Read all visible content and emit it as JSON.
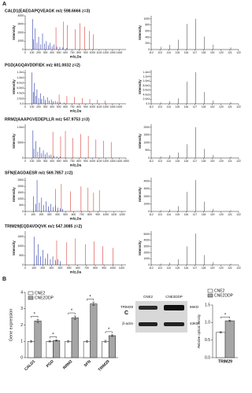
{
  "panel_labels": {
    "a": "A",
    "b": "B",
    "c": "C"
  },
  "blot": {
    "columns": [
      "CNE2",
      "CNE2DDP"
    ],
    "rows": [
      "TRIM29",
      "β-actin"
    ],
    "sizes": [
      "66KD",
      "43KD"
    ]
  },
  "chart_data": [
    {
      "type": "spectrum",
      "title": "CALD1(EAEGAPQVEAGK m/z 598.6666 z=3)",
      "xlabel": "m/z,Da",
      "ylabel": "Intensity",
      "xlim": [
        0,
        1500
      ],
      "xticks": [
        0,
        100,
        200,
        300,
        400,
        500,
        600,
        700,
        800,
        900,
        1000,
        1100,
        1200,
        1300,
        1400
      ],
      "ylim": [
        0,
        4000
      ],
      "yticks": [
        0,
        1000,
        2000,
        3000,
        4000
      ],
      "series": [
        {
          "color": "#2b3aa8",
          "x": [
            110,
            125,
            147,
            175,
            200,
            232,
            258,
            290,
            315,
            345,
            372,
            400,
            430,
            470,
            515,
            560,
            620
          ],
          "values": [
            3600,
            1200,
            2500,
            800,
            1500,
            600,
            1900,
            700,
            1000,
            500,
            800,
            400,
            600,
            350,
            300,
            250,
            200
          ]
        },
        {
          "color": "#d9403a",
          "x": [
            458,
            571,
            628,
            742,
            813,
            884,
            955,
            1012
          ],
          "values": [
            2600,
            3300,
            2900,
            2400,
            3100,
            2700,
            2200,
            1800
          ]
        }
      ]
    },
    {
      "type": "spectrum",
      "ylabel": "Intensity",
      "xlim": [
        112,
        122
      ],
      "xticks": [
        112,
        113,
        114,
        115,
        116,
        117,
        118,
        119,
        120,
        121,
        122
      ],
      "ylim": [
        0,
        1100
      ],
      "yticks": [
        0,
        200,
        400,
        600,
        800,
        1000
      ],
      "series": [
        {
          "color": "#555555",
          "x": [
            113.1,
            114.1,
            115.1,
            116.1,
            117.1,
            118.1,
            119.1,
            121.1
          ],
          "values": [
            90,
            150,
            320,
            830,
            1000,
            420,
            160,
            70
          ]
        }
      ]
    },
    {
      "type": "spectrum",
      "title": "PGD(AGQAVDDFIEK m/z 601.0032 z=2)",
      "xlabel": "m/z,Da",
      "ylabel": "Intensity",
      "xlim": [
        0,
        1500
      ],
      "xticks": [
        0,
        100,
        200,
        300,
        400,
        500,
        600,
        700,
        800,
        900,
        1000,
        1100,
        1200,
        1300,
        1400
      ],
      "ylim": [
        0,
        13000
      ],
      "yticks": [
        {
          "value": 0,
          "label": "0.0"
        },
        {
          "value": 2000,
          "label": "2.0e3"
        },
        {
          "value": 4000,
          "label": "4.0e3"
        },
        {
          "value": 6000,
          "label": "6.0e3"
        },
        {
          "value": 8000,
          "label": "8.0e3"
        },
        {
          "value": 10000,
          "label": "1.0e4"
        },
        {
          "value": 12000,
          "label": "1.2e4"
        }
      ],
      "series": [
        {
          "color": "#2b3aa8",
          "x": [
            101,
            120,
            136,
            159,
            175,
            201,
            226,
            244,
            272,
            301,
            330,
            358,
            389,
            416,
            447,
            480,
            520,
            580
          ],
          "values": [
            12000,
            4500,
            8000,
            3000,
            5500,
            2200,
            4000,
            1800,
            3000,
            1500,
            2500,
            1200,
            1600,
            900,
            1100,
            800,
            600,
            400
          ]
        },
        {
          "color": "#d9403a",
          "x": [
            505,
            620,
            733,
            848,
            961,
            1076,
            1190
          ],
          "values": [
            3500,
            3000,
            2600,
            2200,
            1800,
            1500,
            1200
          ]
        }
      ]
    },
    {
      "type": "spectrum",
      "ylabel": "Intensity",
      "xlim": [
        112,
        122
      ],
      "xticks": [
        112,
        113,
        114,
        115,
        116,
        117,
        118,
        119,
        120,
        121,
        122
      ],
      "ylim": [
        0,
        15000
      ],
      "yticks": [
        {
          "value": 0,
          "label": "0.0"
        },
        {
          "value": 2000,
          "label": "2.0e3"
        },
        {
          "value": 4000,
          "label": "4.0e3"
        },
        {
          "value": 6000,
          "label": "6.0e3"
        },
        {
          "value": 8000,
          "label": "8.0e3"
        },
        {
          "value": 10000,
          "label": "1.0e4"
        },
        {
          "value": 12000,
          "label": "1.2e4"
        },
        {
          "value": 14000,
          "label": "1.4e4"
        }
      ],
      "series": [
        {
          "color": "#555555",
          "x": [
            113.1,
            114.1,
            115.1,
            116.1,
            117.1,
            118.1,
            119.1,
            121.1
          ],
          "values": [
            600,
            1100,
            2400,
            9800,
            14000,
            5200,
            1500,
            700
          ]
        }
      ]
    },
    {
      "type": "spectrum",
      "title": "RRM2(AAAPGVEDEPLLR m/z 547.9753 z=3)",
      "xlabel": "m/z,Da",
      "ylabel": "Intensity",
      "xlim": [
        0,
        1500
      ],
      "xticks": [
        0,
        100,
        200,
        300,
        400,
        500,
        600,
        700,
        800,
        900,
        1000,
        1100,
        1200,
        1300,
        1400,
        1500
      ],
      "ylim": [
        0,
        11000
      ],
      "yticks": [
        0,
        5000,
        {
          "value": 10000,
          "label": "1.0e4"
        }
      ],
      "series": [
        {
          "color": "#2b3aa8",
          "x": [
            115,
            130,
            157,
            187,
            215,
            244,
            270,
            299,
            327,
            356,
            385,
            430,
            470,
            520
          ],
          "values": [
            9000,
            3000,
            5500,
            2000,
            3500,
            1500,
            2500,
            1200,
            1800,
            900,
            1100,
            700,
            500,
            400
          ]
        },
        {
          "color": "#d9403a",
          "x": [
            412,
            527,
            598,
            711,
            824,
            939,
            1052,
            1165,
            1280
          ],
          "values": [
            8500,
            7000,
            8800,
            6500,
            7800,
            7200,
            6000,
            5600,
            5200
          ]
        }
      ]
    },
    {
      "type": "spectrum",
      "ylabel": "Intensity",
      "xlim": [
        112,
        122
      ],
      "xticks": [
        112,
        113,
        114,
        115,
        116,
        117,
        118,
        119,
        120,
        121,
        122
      ],
      "ylim": [
        0,
        2200
      ],
      "yticks": [
        0,
        500,
        1000,
        1500,
        2000
      ],
      "series": [
        {
          "color": "#555555",
          "x": [
            113.1,
            114.1,
            115.1,
            116.1,
            117.1,
            118.1,
            119.1,
            121.1
          ],
          "values": [
            100,
            180,
            350,
            900,
            2000,
            600,
            200,
            80
          ]
        }
      ]
    },
    {
      "type": "spectrum",
      "title": "SFN(EAGDAESR m/z 569.7857 z=2)",
      "xlabel": "m/z,Da",
      "ylabel": "Intensity",
      "xlim": [
        0,
        1250
      ],
      "xticks": [
        0,
        100,
        200,
        300,
        400,
        500,
        600,
        700,
        800,
        900,
        1000,
        1100,
        1200
      ],
      "ylim": [
        0,
        2700
      ],
      "yticks": [
        0,
        500,
        1000,
        1500,
        2000,
        2500
      ],
      "series": [
        {
          "color": "#2b3aa8",
          "x": [
            102,
            130,
            147,
            175,
            203,
            231,
            260,
            289,
            318,
            347,
            376,
            405,
            434,
            462
          ],
          "values": [
            1200,
            600,
            2500,
            700,
            1100,
            500,
            800,
            400,
            600,
            350,
            500,
            300,
            250,
            200
          ]
        },
        {
          "color": "#d9403a",
          "x": [
            377,
            448,
            563,
            692,
            779,
            848,
            920
          ],
          "values": [
            1800,
            2200,
            1600,
            2000,
            1900,
            1500,
            1700
          ]
        }
      ]
    },
    {
      "type": "spectrum",
      "ylabel": "Intensity",
      "xlim": [
        112,
        122
      ],
      "xticks": [
        112,
        113,
        114,
        115,
        116,
        117,
        118,
        119,
        120,
        121,
        122
      ],
      "ylim": [
        0,
        4500
      ],
      "yticks": [
        0,
        1000,
        2000,
        3000,
        4000
      ],
      "series": [
        {
          "color": "#555555",
          "x": [
            113.1,
            114.1,
            115.1,
            116.1,
            117.1,
            118.1,
            119.1,
            121.1
          ],
          "values": [
            150,
            260,
            700,
            2600,
            4200,
            1300,
            350,
            150
          ]
        }
      ]
    },
    {
      "type": "spectrum",
      "title": "TRIM29(EQDAVDQVK m/z 547.3085 z=2)",
      "xlabel": "m/z,Da",
      "ylabel": "Intensity",
      "xlim": [
        0,
        1150
      ],
      "xticks": [
        0,
        100,
        200,
        300,
        400,
        500,
        600,
        700,
        800,
        900,
        1000,
        1100
      ],
      "ylim": [
        0,
        1800
      ],
      "yticks": [
        0,
        500,
        1000,
        1500
      ],
      "series": [
        {
          "color": "#2b3aa8",
          "x": [
            101,
            129,
            147,
            175,
            201,
            230,
            258,
            287,
            315,
            344,
            373,
            400
          ],
          "values": [
            1500,
            500,
            1100,
            450,
            800,
            350,
            600,
            300,
            450,
            250,
            300,
            200
          ]
        },
        {
          "color": "#d9403a",
          "x": [
            359,
            474,
            573,
            688,
            787,
            886,
            1001
          ],
          "values": [
            1300,
            1200,
            1400,
            1100,
            1250,
            1000,
            900
          ]
        }
      ]
    },
    {
      "type": "spectrum",
      "ylabel": "Intensity",
      "xlim": [
        112,
        122
      ],
      "xticks": [
        112,
        113,
        114,
        115,
        116,
        117,
        118,
        119,
        120,
        121,
        122
      ],
      "ylim": [
        0,
        5500
      ],
      "yticks": [
        0,
        1000,
        2000,
        3000,
        4000,
        5000
      ],
      "series": [
        {
          "color": "#555555",
          "x": [
            113.1,
            114.1,
            115.1,
            116.1,
            117.1,
            118.1,
            119.1,
            121.1
          ],
          "values": [
            200,
            350,
            900,
            3000,
            5100,
            1600,
            450,
            180
          ]
        }
      ]
    },
    {
      "type": "bar",
      "ylabel": "Gene expression",
      "categories": [
        "CALD1",
        "PGD",
        "RRM2",
        "SFN",
        "TRIM29"
      ],
      "ylim": [
        0,
        4
      ],
      "yticks": [
        0,
        1,
        2,
        3,
        4
      ],
      "series": [
        {
          "name": "CNE2",
          "color": "#ffffff",
          "values": [
            1.0,
            1.0,
            1.0,
            1.0,
            1.0
          ],
          "errors": [
            0.05,
            0.04,
            0.05,
            0.05,
            0.06
          ]
        },
        {
          "name": "CNE2DDP",
          "color": "#a6a6a6",
          "values": [
            2.25,
            1.05,
            2.45,
            3.3,
            1.35
          ],
          "errors": [
            0.1,
            0.04,
            0.1,
            0.1,
            0.05
          ]
        }
      ],
      "annotations": [
        "*",
        "*",
        "*",
        "*",
        "*"
      ]
    },
    {
      "type": "bar",
      "ylabel": "Relative optical density",
      "categories": [
        "TRIM29"
      ],
      "ylim": [
        0,
        1.5
      ],
      "yticks": [
        {
          "value": 0,
          "label": "0.0"
        },
        {
          "value": 0.5,
          "label": "0.5"
        },
        {
          "value": 1,
          "label": "1.0"
        },
        {
          "value": 1.5,
          "label": "1.5"
        }
      ],
      "series": [
        {
          "name": "CNE2",
          "color": "#ffffff",
          "values": [
            0.72
          ],
          "errors": [
            0.02
          ]
        },
        {
          "name": "CNE2DDP",
          "color": "#a6a6a6",
          "values": [
            1.05
          ],
          "errors": [
            0.02
          ]
        }
      ],
      "annotations": [
        "*"
      ]
    }
  ]
}
